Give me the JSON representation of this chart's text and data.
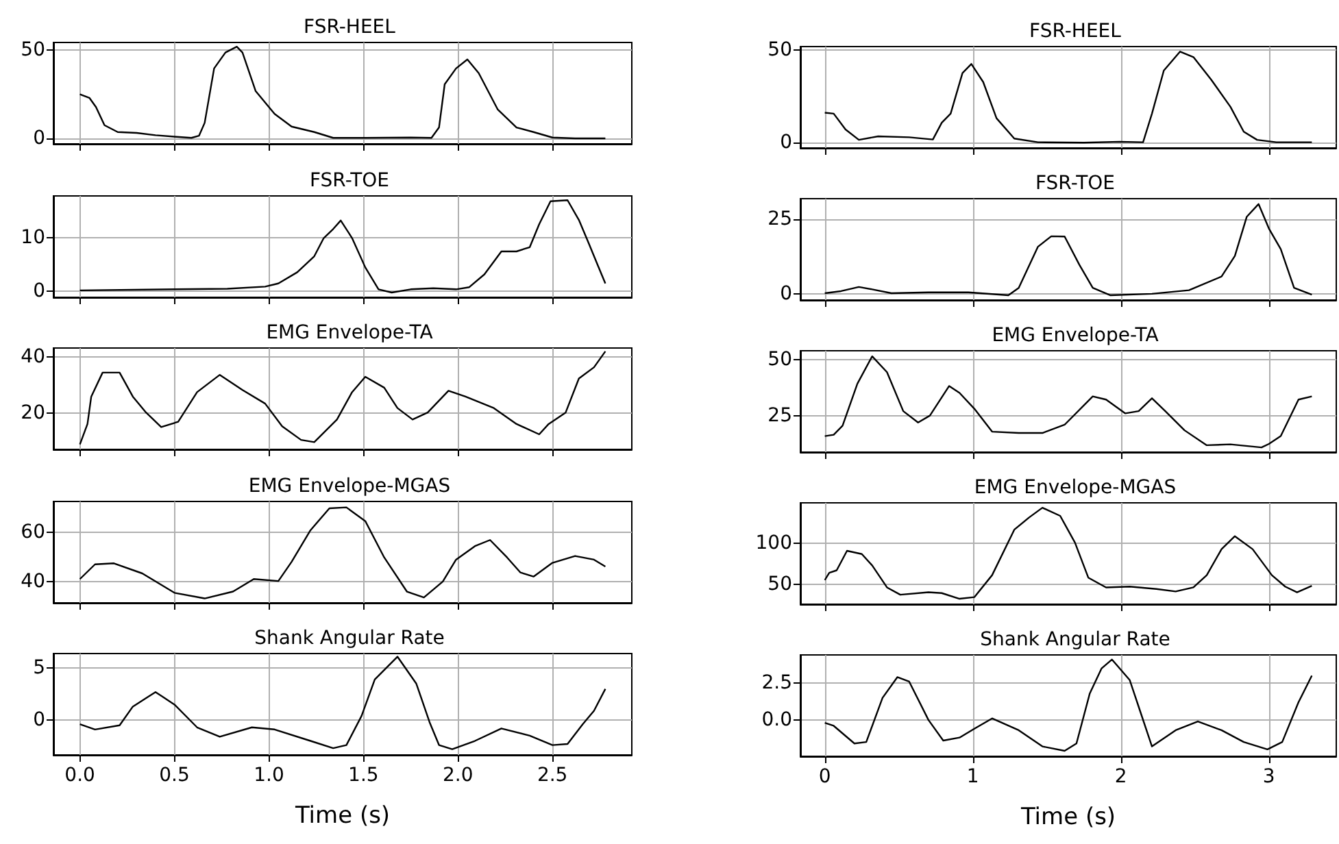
{
  "chart_data": [
    {
      "type": "line",
      "title": "FSR-HEEL",
      "marker": "none",
      "grid": true,
      "tick_labels": "y",
      "xlim": [
        -0.14,
        2.92
      ],
      "ylim": [
        -3.1,
        54.4
      ],
      "xticks": [
        0,
        0.5,
        1,
        1.5,
        2,
        2.5
      ],
      "yticks": [
        0,
        50
      ],
      "x": [
        0,
        0.05,
        0.085,
        0.13,
        0.2,
        0.3,
        0.4,
        0.5,
        0.59,
        0.63,
        0.66,
        0.71,
        0.77,
        0.83,
        0.86,
        0.93,
        1.03,
        1.12,
        1.24,
        1.34,
        1.51,
        1.75,
        1.86,
        1.9,
        1.93,
        1.99,
        2.05,
        2.11,
        2.21,
        2.31,
        2.4,
        2.5,
        2.62,
        2.78
      ],
      "series": [
        {
          "color": "#000000",
          "values": [
            25,
            23,
            17.8,
            7.5,
            3.6,
            3.1,
            1.8,
            1,
            0.3,
            1.5,
            8.8,
            39.7,
            48.7,
            52,
            48.7,
            26.8,
            13.9,
            6.7,
            3.6,
            0.3,
            0.3,
            0.5,
            0.3,
            6.2,
            30.7,
            39.7,
            44.8,
            37,
            16.5,
            6.2,
            3.6,
            0.5,
            0,
            0
          ]
        }
      ]
    },
    {
      "type": "line",
      "title": "FSR-TOE",
      "marker": "none",
      "grid": true,
      "tick_labels": "y",
      "xlim": [
        -0.14,
        2.92
      ],
      "ylim": [
        -1.2,
        17.8
      ],
      "xticks": [
        0,
        0.5,
        1,
        1.5,
        2,
        2.5
      ],
      "yticks": [
        0,
        10
      ],
      "x": [
        0,
        0.5,
        0.78,
        0.98,
        1.05,
        1.15,
        1.24,
        1.29,
        1.34,
        1.38,
        1.44,
        1.51,
        1.58,
        1.65,
        1.75,
        1.87,
        1.99,
        2.06,
        2.14,
        2.23,
        2.31,
        2.38,
        2.43,
        2.49,
        2.58,
        2.64,
        2.69,
        2.74,
        2.78
      ],
      "series": [
        {
          "color": "#000000",
          "values": [
            0.1,
            0.3,
            0.4,
            0.8,
            1.4,
            3.5,
            6.5,
            9.9,
            11.6,
            13.2,
            9.9,
            4.4,
            0.3,
            -0.3,
            0.3,
            0.5,
            0.3,
            0.7,
            3.1,
            7.4,
            7.4,
            8.2,
            12.5,
            16.8,
            17,
            13.3,
            9.1,
            4.8,
            1.4
          ]
        }
      ]
    },
    {
      "type": "line",
      "title": "EMG Envelope-TA",
      "marker": "none",
      "grid": true,
      "tick_labels": "y",
      "xlim": [
        -0.14,
        2.92
      ],
      "ylim": [
        7,
        43.3
      ],
      "xticks": [
        0,
        0.5,
        1,
        1.5,
        2,
        2.5
      ],
      "yticks": [
        20,
        40
      ],
      "x": [
        0,
        0.04,
        0.06,
        0.12,
        0.21,
        0.28,
        0.35,
        0.43,
        0.52,
        0.62,
        0.74,
        0.86,
        0.98,
        1.07,
        1.17,
        1.24,
        1.36,
        1.44,
        1.51,
        1.61,
        1.68,
        1.76,
        1.84,
        1.95,
        2.04,
        2.19,
        2.31,
        2.43,
        2.48,
        2.57,
        2.64,
        2.72,
        2.78
      ],
      "series": [
        {
          "color": "#000000",
          "values": [
            8.8,
            16.1,
            25.9,
            34.5,
            34.5,
            25.9,
            20.2,
            15,
            16.9,
            27.5,
            33.7,
            28.3,
            23.4,
            15.3,
            10.4,
            9.6,
            17.7,
            27.5,
            33,
            29.1,
            21.8,
            17.7,
            20.2,
            28,
            25.9,
            21.8,
            16.1,
            12.4,
            16.1,
            20.2,
            32.4,
            36.4,
            42.1
          ]
        }
      ]
    },
    {
      "type": "line",
      "title": "EMG Envelope-MGAS",
      "marker": "none",
      "grid": true,
      "tick_labels": "y",
      "xlim": [
        -0.14,
        2.92
      ],
      "ylim": [
        31.3,
        72.6
      ],
      "xticks": [
        0,
        0.5,
        1,
        1.5,
        2,
        2.5
      ],
      "yticks": [
        40,
        60
      ],
      "x": [
        0,
        0.08,
        0.18,
        0.33,
        0.5,
        0.66,
        0.81,
        0.92,
        1.05,
        1.12,
        1.22,
        1.32,
        1.41,
        1.51,
        1.61,
        1.73,
        1.82,
        1.92,
        1.99,
        2.09,
        2.17,
        2.26,
        2.33,
        2.4,
        2.5,
        2.62,
        2.72,
        2.78
      ],
      "series": [
        {
          "color": "#000000",
          "values": [
            41,
            47,
            47.4,
            43.3,
            35.4,
            33.1,
            35.9,
            41,
            40.2,
            48,
            60.9,
            69.8,
            70.2,
            64.6,
            49.8,
            35.9,
            33.5,
            40,
            48.9,
            54.4,
            56.9,
            49.8,
            43.7,
            42,
            47.6,
            50.4,
            48.9,
            46.1
          ]
        }
      ]
    },
    {
      "type": "line",
      "title": "Shank Angular Rate",
      "xlabel": "Time (s)",
      "marker": "none",
      "grid": true,
      "xlim": [
        -0.14,
        2.92
      ],
      "ylim": [
        -3.35,
        6.4
      ],
      "xticks": [
        {
          "value": 0,
          "label": "0.0"
        },
        0.5,
        {
          "value": 1,
          "label": "1.0"
        },
        1.5,
        {
          "value": 2,
          "label": "2.0"
        },
        2.5
      ],
      "yticks": [
        0,
        5
      ],
      "x": [
        0,
        0.08,
        0.21,
        0.28,
        0.4,
        0.5,
        0.62,
        0.74,
        0.91,
        1.03,
        1.22,
        1.34,
        1.41,
        1.49,
        1.56,
        1.68,
        1.78,
        1.85,
        1.9,
        1.97,
        2.09,
        2.23,
        2.38,
        2.5,
        2.58,
        2.66,
        2.72,
        2.78
      ],
      "series": [
        {
          "color": "#000000",
          "values": [
            -0.4,
            -0.9,
            -0.5,
            1.3,
            2.7,
            1.5,
            -0.7,
            -1.6,
            -0.7,
            -0.9,
            -2,
            -2.7,
            -2.4,
            0.4,
            3.9,
            6.1,
            3.5,
            -0.2,
            -2.4,
            -2.8,
            -2,
            -0.8,
            -1.5,
            -2.4,
            -2.3,
            -0.4,
            0.9,
            3
          ]
        }
      ]
    },
    {
      "type": "line",
      "title": "FSR-HEEL",
      "marker": "none",
      "grid": true,
      "tick_labels": "y",
      "xlim": [
        -0.165,
        3.455
      ],
      "ylim": [
        -2.9,
        52
      ],
      "xticks": [
        0,
        1,
        2,
        3
      ],
      "yticks": [
        0,
        50
      ],
      "x": [
        0,
        0.06,
        0.14,
        0.23,
        0.36,
        0.57,
        0.73,
        0.79,
        0.85,
        0.93,
        0.99,
        1.07,
        1.16,
        1.28,
        1.44,
        1.75,
        1.99,
        2.15,
        2.21,
        2.29,
        2.4,
        2.49,
        2.61,
        2.74,
        2.83,
        2.92,
        3.05,
        3.29
      ],
      "series": [
        {
          "color": "#000000",
          "values": [
            16.2,
            15.7,
            7.1,
            1.5,
            3.4,
            2.9,
            1.7,
            10.8,
            15.7,
            37.7,
            42.6,
            32.8,
            13.2,
            2.2,
            0.2,
            0,
            0.5,
            0.2,
            15.7,
            39,
            49.3,
            46.3,
            34.1,
            19.4,
            5.9,
            1.5,
            0.2,
            0.2
          ]
        }
      ]
    },
    {
      "type": "line",
      "title": "FSR-TOE",
      "marker": "none",
      "grid": true,
      "tick_labels": "y",
      "xlim": [
        -0.165,
        3.455
      ],
      "ylim": [
        -2.1,
        31.9
      ],
      "xticks": [
        0,
        1,
        2,
        3
      ],
      "yticks": [
        0,
        25
      ],
      "x": [
        0,
        0.11,
        0.23,
        0.32,
        0.45,
        0.7,
        0.97,
        1.24,
        1.31,
        1.44,
        1.53,
        1.62,
        1.72,
        1.81,
        1.93,
        2.21,
        2.46,
        2.68,
        2.77,
        2.85,
        2.93,
        3,
        3.08,
        3.17,
        3.29
      ],
      "series": [
        {
          "color": "#000000",
          "values": [
            0.2,
            0.9,
            2.3,
            1.5,
            0.2,
            0.5,
            0.5,
            -0.5,
            2,
            15.8,
            19.3,
            19.2,
            9.7,
            2,
            -0.5,
            0,
            1.2,
            5.8,
            12.7,
            25.8,
            30.1,
            21.9,
            15,
            2,
            -0.3
          ]
        }
      ]
    },
    {
      "type": "line",
      "title": "EMG Envelope-TA",
      "marker": "none",
      "grid": true,
      "tick_labels": "y",
      "xlim": [
        -0.165,
        3.455
      ],
      "ylim": [
        8.6,
        54.1
      ],
      "xticks": [
        0,
        1,
        2,
        3
      ],
      "yticks": [
        25,
        50
      ],
      "x": [
        0,
        0.06,
        0.12,
        0.22,
        0.32,
        0.42,
        0.53,
        0.63,
        0.71,
        0.84,
        0.91,
        1.01,
        1.13,
        1.31,
        1.47,
        1.62,
        1.81,
        1.9,
        2.03,
        2.12,
        2.21,
        2.3,
        2.43,
        2.58,
        2.74,
        2.95,
        3,
        3.08,
        3.2,
        3.29
      ],
      "series": [
        {
          "color": "#000000",
          "values": [
            15.8,
            16.4,
            20.5,
            39.3,
            51.6,
            44.5,
            27,
            21.9,
            25,
            38.3,
            35.2,
            28.1,
            17.8,
            17.2,
            17.2,
            20.9,
            33.6,
            32.2,
            26,
            27,
            32.8,
            27,
            18.4,
            11.7,
            12.1,
            10.7,
            12.3,
            15.8,
            32.2,
            33.6
          ]
        }
      ]
    },
    {
      "type": "line",
      "title": "EMG Envelope-MGAS",
      "marker": "none",
      "grid": true,
      "tick_labels": "y",
      "xlim": [
        -0.165,
        3.455
      ],
      "ylim": [
        25.3,
        150
      ],
      "xticks": [
        0,
        1,
        2,
        3
      ],
      "yticks": [
        50,
        100
      ],
      "x": [
        0,
        0.03,
        0.08,
        0.15,
        0.25,
        0.32,
        0.42,
        0.51,
        0.7,
        0.79,
        0.91,
        1.01,
        1.13,
        1.28,
        1.38,
        1.47,
        1.59,
        1.69,
        1.78,
        1.9,
        2.06,
        2.24,
        2.37,
        2.49,
        2.58,
        2.68,
        2.77,
        2.89,
        3.02,
        3.11,
        3.19,
        3.29
      ],
      "series": [
        {
          "color": "#000000",
          "values": [
            55,
            64,
            67,
            91,
            87,
            73,
            46,
            37,
            40,
            39,
            32,
            34,
            61,
            117,
            132,
            144,
            134,
            101,
            58,
            46,
            47,
            44,
            41,
            46,
            61,
            93,
            109,
            93,
            61,
            47,
            40,
            48
          ]
        }
      ]
    },
    {
      "type": "line",
      "title": "Shank Angular Rate",
      "xlabel": "Time (s)",
      "marker": "none",
      "grid": true,
      "xlim": [
        -0.165,
        3.455
      ],
      "ylim": [
        -2.47,
        4.41
      ],
      "xticks": [
        0,
        1,
        2,
        3
      ],
      "yticks": [
        {
          "value": 0,
          "label": "0.0"
        },
        2.5
      ],
      "x": [
        0,
        0.06,
        0.2,
        0.28,
        0.39,
        0.49,
        0.57,
        0.7,
        0.8,
        0.91,
        1.01,
        1.13,
        1.31,
        1.47,
        1.62,
        1.7,
        1.79,
        1.87,
        1.94,
        2.06,
        2.12,
        2.21,
        2.37,
        2.52,
        2.68,
        2.83,
        2.99,
        3.09,
        3.2,
        3.29
      ],
      "series": [
        {
          "color": "#000000",
          "values": [
            -0.2,
            -0.4,
            -1.6,
            -1.5,
            1.5,
            2.9,
            2.6,
            0,
            -1.4,
            -1.2,
            -0.6,
            0.1,
            -0.7,
            -1.8,
            -2.1,
            -1.6,
            1.8,
            3.5,
            4.1,
            2.7,
            0.9,
            -1.8,
            -0.7,
            -0.1,
            -0.7,
            -1.5,
            -2,
            -1.5,
            1.2,
            3
          ]
        }
      ]
    }
  ]
}
